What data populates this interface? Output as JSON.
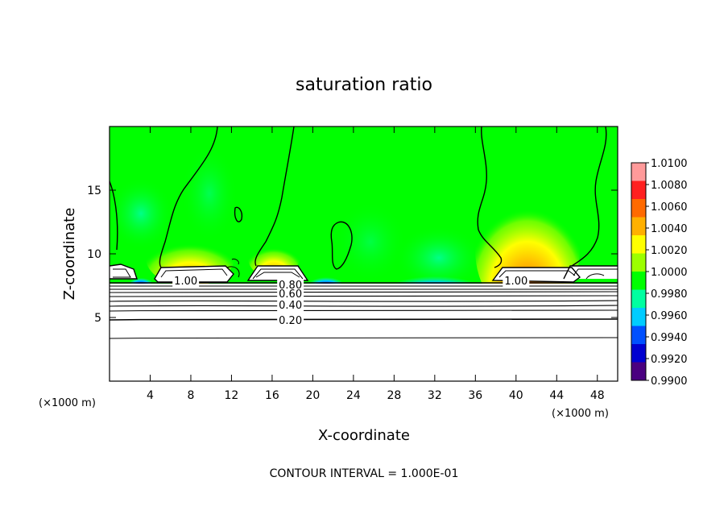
{
  "chart_data": {
    "type": "heatmap",
    "title": "saturation ratio",
    "xlabel": "X-coordinate",
    "ylabel": "Z-coordinate",
    "x_unit": "(×1000 m)",
    "x_unit_right": "(×1000 m)",
    "xlim": [
      0,
      50
    ],
    "ylim": [
      0,
      20
    ],
    "x_ticks": [
      4,
      8,
      12,
      16,
      20,
      24,
      28,
      32,
      36,
      40,
      44,
      48
    ],
    "x_tick_labels": [
      "4",
      "8",
      "12",
      "16",
      "20",
      "24",
      "28",
      "32",
      "36",
      "40",
      "44",
      "48"
    ],
    "y_ticks": [
      5,
      10,
      15
    ],
    "y_tick_labels": [
      "5",
      "10",
      "15"
    ],
    "colorbar": {
      "range": [
        0.99,
        1.01
      ],
      "labels": [
        "1.0100",
        "1.0080",
        "1.0060",
        "1.0040",
        "1.0020",
        "1.0000",
        "0.9980",
        "0.9960",
        "0.9940",
        "0.9920",
        "0.9900"
      ],
      "colors": [
        "#ff9a9a",
        "#ff2020",
        "#ff6a00",
        "#ffb000",
        "#ffff00",
        "#9cff00",
        "#00ff00",
        "#00ffa0",
        "#00ccff",
        "#0050ff",
        "#0000d0",
        "#4a0080"
      ]
    },
    "contour_labels": [
      {
        "text": "1.00",
        "x": 7.5,
        "z": 7.9
      },
      {
        "text": "0.80",
        "x": 17.8,
        "z": 7.6
      },
      {
        "text": "0.60",
        "x": 17.8,
        "z": 6.9
      },
      {
        "text": "0.40",
        "x": 17.8,
        "z": 6.0
      },
      {
        "text": "0.20",
        "x": 17.8,
        "z": 4.8
      },
      {
        "text": "1.00",
        "x": 40.0,
        "z": 7.9
      }
    ],
    "contour_levels": [
      0.2,
      0.4,
      0.6,
      0.8,
      1.0
    ],
    "background": "#00ff00",
    "note": "CONTOUR INTERVAL = 1.000E-01"
  }
}
